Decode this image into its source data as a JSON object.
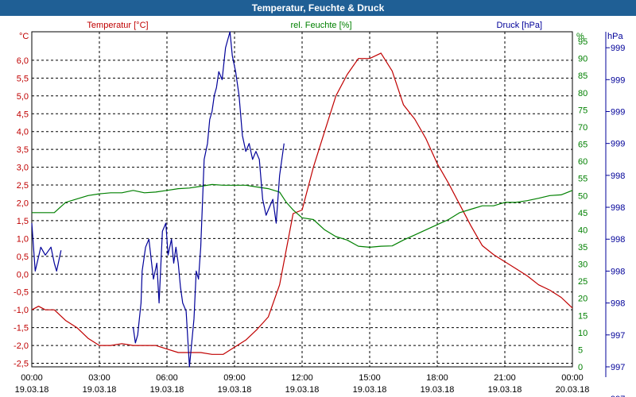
{
  "window": {
    "title": "Temperatur, Feuchte & Druck"
  },
  "colors": {
    "temperature": "#c00000",
    "humidity": "#008000",
    "pressure": "#000099",
    "grid": "#000000",
    "titlebar": "#1f5f95"
  },
  "chart_data": {
    "type": "line",
    "title": "Temperatur, Feuchte & Druck",
    "grid": true,
    "x_ticks": [
      {
        "time": "00:00",
        "date": "19.03.18"
      },
      {
        "time": "03:00",
        "date": "19.03.18"
      },
      {
        "time": "06:00",
        "date": "19.03.18"
      },
      {
        "time": "09:00",
        "date": "19.03.18"
      },
      {
        "time": "12:00",
        "date": "19.03.18"
      },
      {
        "time": "15:00",
        "date": "19.03.18"
      },
      {
        "time": "18:00",
        "date": "19.03.18"
      },
      {
        "time": "21:00",
        "date": "19.03.18"
      },
      {
        "time": "00:00",
        "date": "20.03.18"
      }
    ],
    "x_range": [
      0,
      24
    ],
    "axes": {
      "temperature": {
        "label": "Temperatur [°C]",
        "unit": "°C",
        "range": [
          -2.6,
          6.8
        ],
        "ticks": [
          "6,0",
          "5,5",
          "5,0",
          "4,5",
          "4,0",
          "3,5",
          "3,0",
          "2,5",
          "2,0",
          "1,5",
          "1,0",
          "0,5",
          "0,0",
          "-0,5",
          "-1,0",
          "-1,5",
          "-2,0",
          "-2,5"
        ],
        "tick_values": [
          6.0,
          5.5,
          5.0,
          4.5,
          4.0,
          3.5,
          3.0,
          2.5,
          2.0,
          1.5,
          1.0,
          0.5,
          0.0,
          -0.5,
          -1.0,
          -1.5,
          -2.0,
          -2.5
        ]
      },
      "humidity": {
        "label": "rel. Feuchte [%]",
        "unit": "%",
        "range": [
          0,
          97.8
        ],
        "ticks": [
          "95",
          "90",
          "85",
          "80",
          "75",
          "70",
          "65",
          "60",
          "55",
          "50",
          "45",
          "40",
          "35",
          "30",
          "25",
          "20",
          "15",
          "10",
          "5",
          "0"
        ],
        "tick_values": [
          95,
          90,
          85,
          80,
          75,
          70,
          65,
          60,
          55,
          50,
          45,
          40,
          35,
          30,
          25,
          20,
          15,
          10,
          5,
          0
        ]
      },
      "pressure": {
        "label": "Druck [hPa]",
        "unit": "hPa",
        "range": [
          997.0,
          999.1
        ],
        "ticks": [
          "999",
          "999",
          "999",
          "999",
          "998",
          "998",
          "998",
          "998",
          "998",
          "997",
          "997",
          "997"
        ],
        "tick_values": [
          999.0,
          998.8,
          998.6,
          998.4,
          998.2,
          998.0,
          997.8,
          997.6,
          997.4,
          997.2,
          997.0,
          996.8
        ]
      }
    },
    "series": [
      {
        "name": "Temperatur [°C]",
        "axis": "temperature",
        "color": "#c00000",
        "x": [
          0,
          0.3,
          0.6,
          1,
          1.5,
          2,
          2.5,
          3,
          3.5,
          4,
          4.5,
          5,
          5.5,
          6,
          6.5,
          7,
          7.5,
          8,
          8.5,
          9,
          9.5,
          10,
          10.5,
          11,
          11.3,
          11.6,
          12,
          12.5,
          13,
          13.5,
          14,
          14.5,
          15,
          15.5,
          16,
          16.5,
          17,
          17.5,
          18,
          18.5,
          19,
          19.5,
          20,
          20.5,
          21,
          21.5,
          22,
          22.5,
          23,
          23.5,
          24
        ],
        "y": [
          -1.0,
          -0.9,
          -1.0,
          -1.0,
          -1.3,
          -1.5,
          -1.8,
          -2.0,
          -2.0,
          -1.95,
          -2.0,
          -2.0,
          -2.0,
          -2.1,
          -2.2,
          -2.2,
          -2.2,
          -2.25,
          -2.25,
          -2.05,
          -1.85,
          -1.55,
          -1.2,
          -0.3,
          0.7,
          1.7,
          1.8,
          3.0,
          4.0,
          5.0,
          5.6,
          6.05,
          6.05,
          6.2,
          5.7,
          4.75,
          4.35,
          3.8,
          3.1,
          2.55,
          1.95,
          1.35,
          0.8,
          0.55,
          0.35,
          0.15,
          -0.05,
          -0.3,
          -0.45,
          -0.65,
          -0.95
        ]
      },
      {
        "name": "rel. Feuchte [%]",
        "axis": "humidity",
        "color": "#008000",
        "x": [
          0,
          0.5,
          1,
          1.5,
          2,
          2.5,
          3,
          3.5,
          4,
          4.5,
          5,
          5.5,
          6,
          6.5,
          7,
          7.5,
          8,
          8.5,
          9,
          9.5,
          10,
          10.5,
          11,
          11.3,
          11.6,
          12,
          12.5,
          13,
          13.5,
          14,
          14.5,
          15,
          15.5,
          16,
          16.5,
          17,
          17.5,
          18,
          18.5,
          19,
          19.5,
          20,
          20.5,
          21,
          21.5,
          22,
          22.5,
          23,
          23.5,
          24
        ],
        "y": [
          45,
          45,
          45,
          48,
          49,
          50,
          50.5,
          50.8,
          50.8,
          51.5,
          50.8,
          51,
          51.5,
          52,
          52.2,
          52.7,
          53.2,
          53,
          53,
          53,
          52.5,
          52,
          51,
          48,
          45.8,
          43.5,
          43,
          40,
          38,
          37,
          35.2,
          34.9,
          35.2,
          35.3,
          37,
          38.5,
          40,
          41.5,
          43,
          45,
          46,
          47,
          47,
          48,
          48,
          48.5,
          49.2,
          50,
          50.2,
          51.5
        ]
      },
      {
        "name": "Druck [hPa]",
        "axis": "pressure",
        "color": "#000099",
        "segments": [
          {
            "x": [
              0.0,
              0.15,
              0.4,
              0.6,
              0.85,
              1.0,
              1.1,
              1.3
            ],
            "y": [
              997.9,
              997.6,
              997.75,
              997.7,
              997.75,
              997.65,
              997.6,
              997.73
            ]
          },
          {
            "x": [
              4.5,
              4.6,
              4.7,
              4.85,
              4.9,
              5.05,
              5.2,
              5.4,
              5.55,
              5.65,
              5.8,
              5.95,
              6.05,
              6.2,
              6.3,
              6.4,
              6.5,
              6.6,
              6.7,
              6.85,
              7.0,
              7.2,
              7.3,
              7.4,
              7.5,
              7.65,
              7.8,
              7.9,
              8.0,
              8.1,
              8.2,
              8.3,
              8.45,
              8.6,
              8.7,
              8.8,
              8.9,
              9.05,
              9.2,
              9.35,
              9.5,
              9.65,
              9.8,
              9.95,
              10.1,
              10.25,
              10.4,
              10.55,
              10.7,
              10.85,
              11.0,
              11.2
            ],
            "y": [
              997.25,
              997.15,
              997.2,
              997.4,
              997.6,
              997.75,
              997.8,
              997.55,
              997.65,
              997.4,
              997.85,
              997.9,
              997.7,
              997.8,
              997.65,
              997.75,
              997.65,
              997.5,
              997.4,
              997.35,
              997.0,
              997.3,
              997.6,
              997.55,
              997.75,
              998.3,
              998.4,
              998.55,
              998.6,
              998.7,
              998.75,
              998.85,
              998.8,
              999.0,
              999.05,
              999.1,
              998.95,
              998.85,
              998.7,
              998.45,
              998.35,
              998.4,
              998.3,
              998.35,
              998.3,
              998.05,
              997.95,
              998.0,
              998.05,
              997.9,
              998.2,
              998.4
            ]
          }
        ]
      }
    ]
  }
}
